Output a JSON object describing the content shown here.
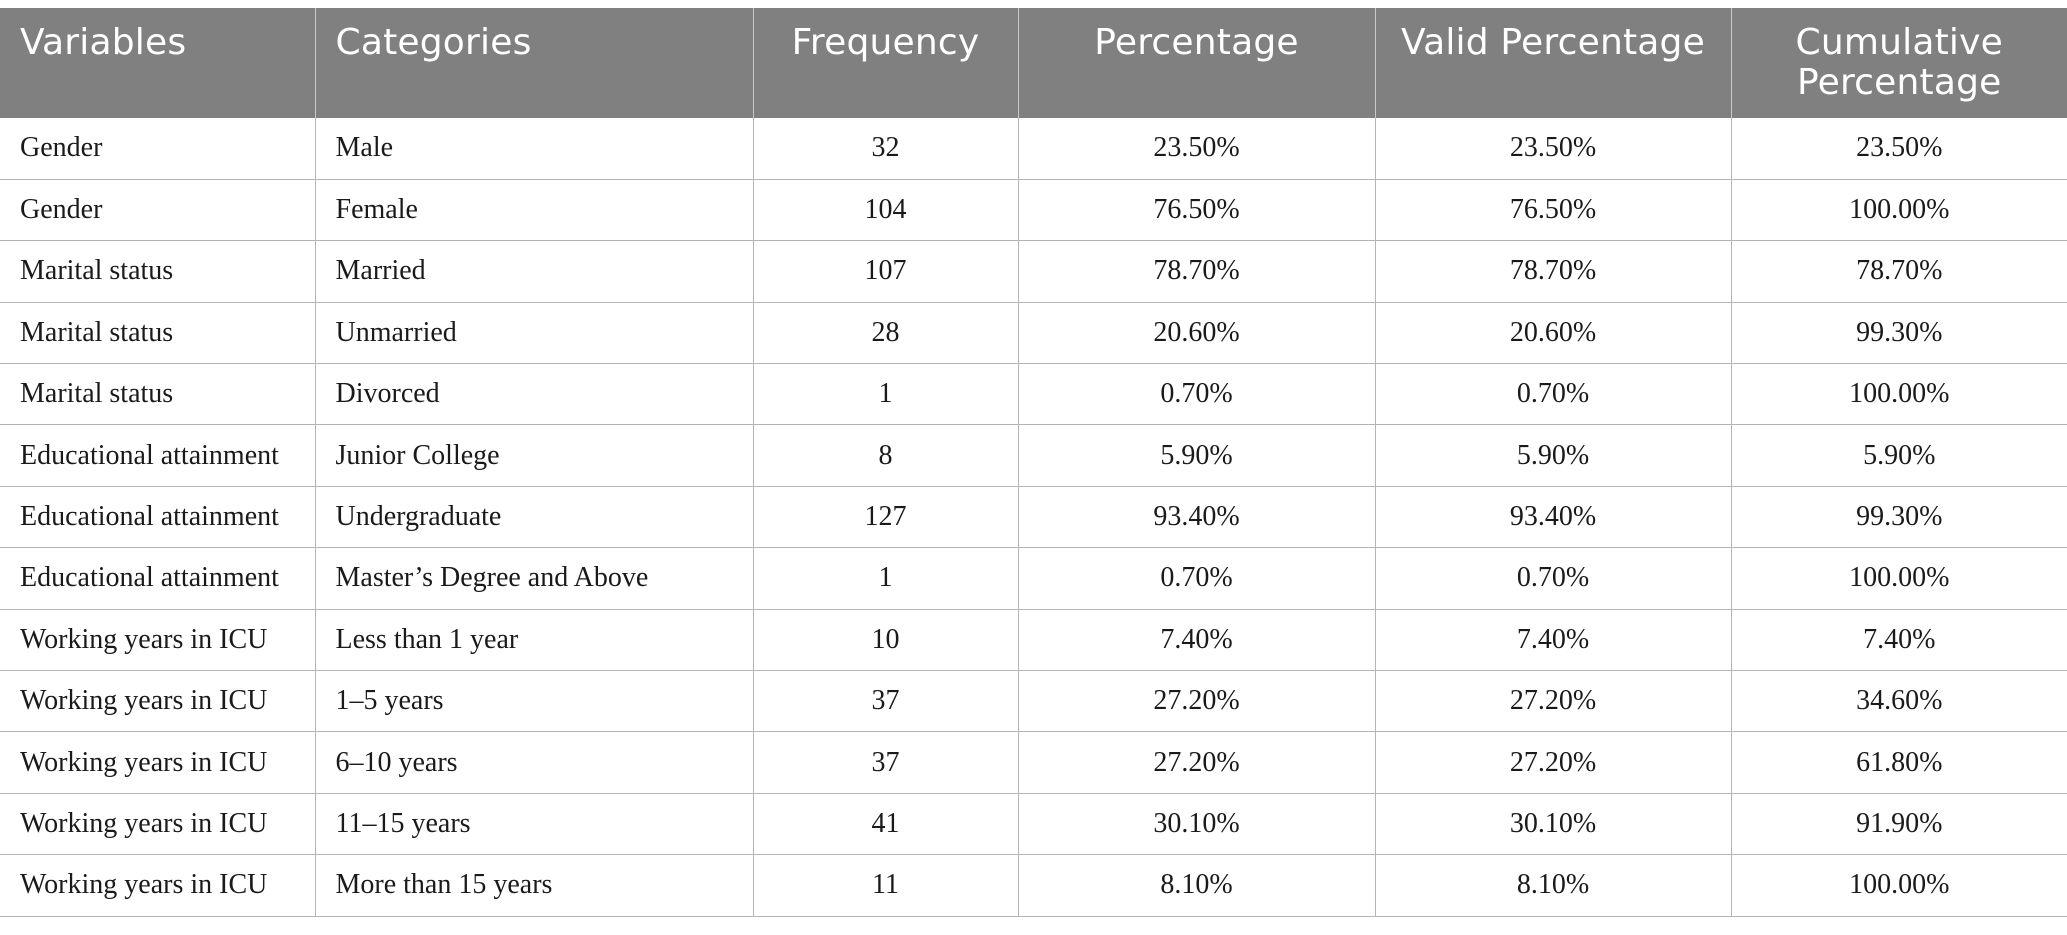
{
  "table": {
    "headers": [
      "Variables",
      "Categories",
      "Frequency",
      "Percentage",
      "Valid Percentage",
      "Cumulative Percentage"
    ],
    "rows": [
      [
        "Gender",
        "Male",
        "32",
        "23.50%",
        "23.50%",
        "23.50%"
      ],
      [
        "Gender",
        "Female",
        "104",
        "76.50%",
        "76.50%",
        "100.00%"
      ],
      [
        "Marital status",
        "Married",
        "107",
        "78.70%",
        "78.70%",
        "78.70%"
      ],
      [
        "Marital status",
        "Unmarried",
        "28",
        "20.60%",
        "20.60%",
        "99.30%"
      ],
      [
        "Marital status",
        "Divorced",
        "1",
        "0.70%",
        "0.70%",
        "100.00%"
      ],
      [
        "Educational attainment",
        "Junior College",
        "8",
        "5.90%",
        "5.90%",
        "5.90%"
      ],
      [
        "Educational attainment",
        "Undergraduate",
        "127",
        "93.40%",
        "93.40%",
        "99.30%"
      ],
      [
        "Educational attainment",
        "Master’s Degree and Above",
        "1",
        "0.70%",
        "0.70%",
        "100.00%"
      ],
      [
        "Working years in ICU",
        "Less than 1 year",
        "10",
        "7.40%",
        "7.40%",
        "7.40%"
      ],
      [
        "Working years in ICU",
        "1–5 years",
        "37",
        "27.20%",
        "27.20%",
        "34.60%"
      ],
      [
        "Working years in ICU",
        "6–10 years",
        "37",
        "27.20%",
        "27.20%",
        "61.80%"
      ],
      [
        "Working years in ICU",
        "11–15 years",
        "41",
        "30.10%",
        "30.10%",
        "91.90%"
      ],
      [
        "Working years in ICU",
        "More than 15 years",
        "11",
        "8.10%",
        "8.10%",
        "100.00%"
      ]
    ]
  },
  "colors": {
    "header_background": "#808080",
    "header_text": "#ffffff",
    "grid_line": "#b5b5b5"
  }
}
